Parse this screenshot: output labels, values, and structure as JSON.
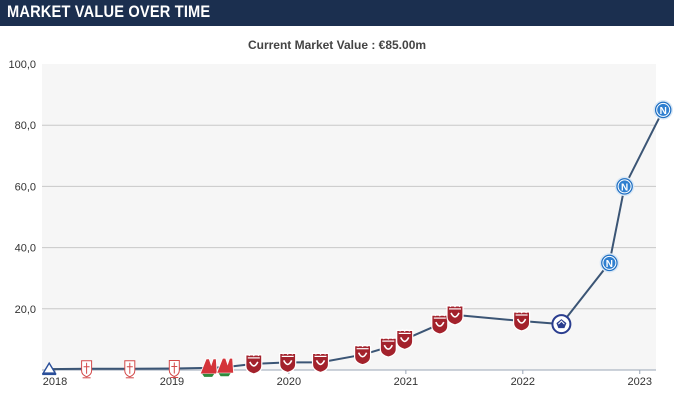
{
  "header": {
    "title": "MARKET VALUE OVER TIME"
  },
  "colors": {
    "header_bg": "#1b2f4f",
    "line": "#3b5575",
    "plot_bg": "#f6f6f6",
    "grid": "#c8c8c8",
    "club_marker_red": "#a3222c",
    "club_marker_blue": "#2f7fd0"
  },
  "chart_data": {
    "type": "line",
    "title": "",
    "subtitle": "Current Market Value : €85.00m",
    "xlabel": "",
    "ylabel": "",
    "ylim": [
      0,
      100
    ],
    "yticks": [
      {
        "value": 20,
        "label": "20,0"
      },
      {
        "value": 40,
        "label": "40,0"
      },
      {
        "value": 60,
        "label": "60,0"
      },
      {
        "value": 80,
        "label": "80,0"
      },
      {
        "value": 100,
        "label": "100,0"
      }
    ],
    "xlim": [
      2018.0,
      2023.25
    ],
    "xticks": [
      {
        "value": 2018,
        "label": "2018"
      },
      {
        "value": 2019,
        "label": "2019"
      },
      {
        "value": 2020,
        "label": "2020"
      },
      {
        "value": 2021,
        "label": "2021"
      },
      {
        "value": 2022,
        "label": "2022"
      },
      {
        "value": 2023,
        "label": "2023"
      }
    ],
    "grid": true,
    "legend": "none",
    "series": [
      {
        "points": [
          {
            "x": 2017.95,
            "y": 0.3,
            "marker": "dinamo-crest-icon"
          },
          {
            "x": 2018.27,
            "y": 0.4,
            "marker": "red-crest-outline-icon"
          },
          {
            "x": 2018.64,
            "y": 0.4,
            "marker": "red-crest-outline-icon"
          },
          {
            "x": 2019.02,
            "y": 0.5,
            "marker": "red-crest-outline-icon"
          },
          {
            "x": 2019.31,
            "y": 0.7,
            "marker": "lokomotiv-crest-icon"
          },
          {
            "x": 2019.45,
            "y": 0.9,
            "marker": "lokomotiv-crest-icon"
          },
          {
            "x": 2019.7,
            "y": 2.0,
            "marker": "rubin-crest-icon"
          },
          {
            "x": 2019.99,
            "y": 2.5,
            "marker": "rubin-crest-icon"
          },
          {
            "x": 2020.27,
            "y": 2.5,
            "marker": "rubin-crest-icon"
          },
          {
            "x": 2020.63,
            "y": 5.0,
            "marker": "rubin-crest-icon"
          },
          {
            "x": 2020.85,
            "y": 7.5,
            "marker": "rubin-crest-icon"
          },
          {
            "x": 2020.99,
            "y": 10.0,
            "marker": "rubin-crest-icon"
          },
          {
            "x": 2021.29,
            "y": 15.0,
            "marker": "rubin-crest-icon"
          },
          {
            "x": 2021.42,
            "y": 18.0,
            "marker": "rubin-crest-icon"
          },
          {
            "x": 2021.99,
            "y": 16.0,
            "marker": "rubin-crest-icon"
          },
          {
            "x": 2022.33,
            "y": 15.0,
            "marker": "dinamo-batumi-crest-icon"
          },
          {
            "x": 2022.74,
            "y": 35.0,
            "marker": "napoli-crest-icon"
          },
          {
            "x": 2022.87,
            "y": 60.0,
            "marker": "napoli-crest-icon"
          },
          {
            "x": 2023.2,
            "y": 85.0,
            "marker": "napoli-crest-icon"
          }
        ]
      }
    ]
  }
}
